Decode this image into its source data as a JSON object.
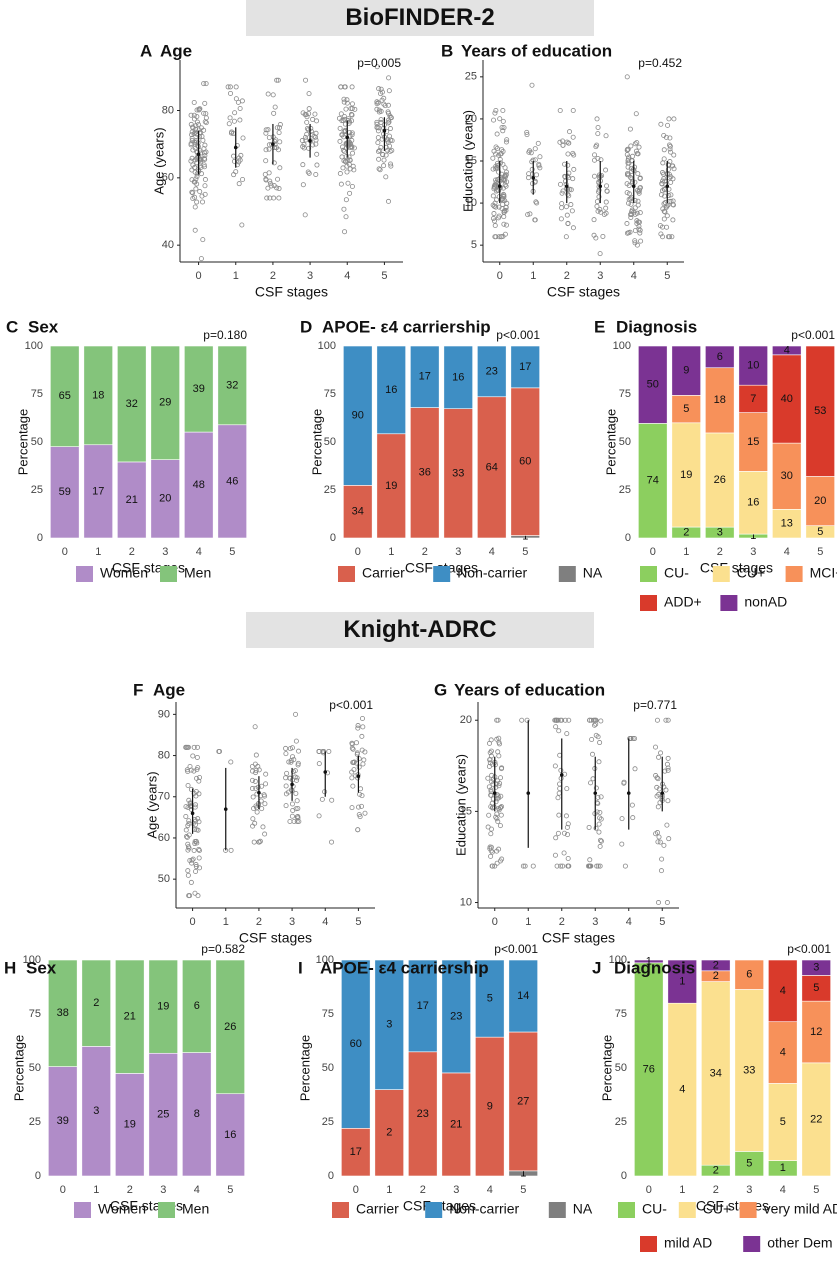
{
  "cohorts": {
    "biofinder": "BioFINDER-2",
    "knight": "Knight-ADRC"
  },
  "legends": {
    "sex": [
      "Women",
      "Men"
    ],
    "apoe": [
      "Carrier",
      "Non-carrier",
      "NA"
    ],
    "dx_bf": [
      "CU-",
      "CU+",
      "MCI+",
      "ADD+",
      "nonAD"
    ],
    "dx_kn": [
      "CU-",
      "CU+",
      "very mild AD",
      "mild AD",
      "other Dem"
    ]
  },
  "colors": {
    "women": "#b08cc8",
    "men": "#84c47b",
    "carrier": "#d9604d",
    "noncarrier": "#3e8ec4",
    "na": "#7f7f7f",
    "cu_minus": "#8ccf5f",
    "cu_plus": "#fbe08f",
    "mci": "#f7915a",
    "add": "#d93a2b",
    "nonad": "#7b3393"
  },
  "chart_data": [
    {
      "id": "A",
      "letter": "A",
      "type": "scatter",
      "title": "Age",
      "pvalue": "p=0.005",
      "xlabel": "CSF stages",
      "ylabel": "Age (years)",
      "categories": [
        "0",
        "1",
        "2",
        "3",
        "4",
        "5"
      ],
      "ylim": [
        35,
        95
      ],
      "yticks": [
        40,
        60,
        80
      ],
      "n": [
        110,
        30,
        45,
        40,
        85,
        70
      ],
      "median": [
        67,
        69,
        70,
        71,
        72,
        74
      ],
      "q1": [
        61,
        63,
        64,
        66,
        66,
        68
      ],
      "q3": [
        74,
        75,
        76,
        76,
        77,
        78
      ],
      "range": [
        [
          36,
          88
        ],
        [
          46,
          87
        ],
        [
          54,
          89
        ],
        [
          49,
          89
        ],
        [
          44,
          87
        ],
        [
          53,
          93
        ]
      ]
    },
    {
      "id": "B",
      "letter": "B",
      "type": "scatter",
      "title": "Years of education",
      "pvalue": "p=0.452",
      "xlabel": "CSF stages",
      "ylabel": "Education (years)",
      "categories": [
        "0",
        "1",
        "2",
        "3",
        "4",
        "5"
      ],
      "ylim": [
        3,
        27
      ],
      "yticks": [
        5,
        10,
        15,
        20,
        25
      ],
      "n": [
        110,
        30,
        45,
        40,
        85,
        70
      ],
      "median": [
        12,
        13,
        12,
        12,
        12,
        12
      ],
      "q1": [
        10,
        11,
        10,
        10,
        10,
        10
      ],
      "q3": [
        15,
        15,
        15,
        15,
        15,
        15
      ],
      "range": [
        [
          6,
          21
        ],
        [
          8,
          24
        ],
        [
          6,
          21
        ],
        [
          4,
          20
        ],
        [
          5,
          25
        ],
        [
          6,
          20
        ]
      ]
    },
    {
      "id": "C",
      "letter": "C",
      "type": "bar",
      "title": "Sex",
      "pvalue": "p=0.180",
      "xlabel": "CSF stages",
      "ylabel": "Percentage",
      "categories": [
        "0",
        "1",
        "2",
        "3",
        "4",
        "5"
      ],
      "yticks": [
        0,
        25,
        50,
        75,
        100
      ],
      "series": [
        {
          "key": "women",
          "values": [
            59,
            17,
            21,
            20,
            48,
            46
          ]
        },
        {
          "key": "men",
          "values": [
            65,
            18,
            32,
            29,
            39,
            32
          ]
        }
      ]
    },
    {
      "id": "D",
      "letter": "D",
      "type": "bar",
      "title": "APOE- ε4 carriership",
      "pvalue": "p<0.001",
      "xlabel": "CSF stages",
      "ylabel": "Percentage",
      "categories": [
        "0",
        "1",
        "2",
        "3",
        "4",
        "5"
      ],
      "yticks": [
        0,
        25,
        50,
        75,
        100
      ],
      "series": [
        {
          "key": "na",
          "values": [
            0,
            0,
            0,
            0,
            0,
            1
          ]
        },
        {
          "key": "carrier",
          "values": [
            34,
            19,
            36,
            33,
            64,
            60
          ]
        },
        {
          "key": "noncarrier",
          "values": [
            90,
            16,
            17,
            16,
            23,
            17
          ]
        }
      ]
    },
    {
      "id": "E",
      "letter": "E",
      "type": "bar",
      "title": "Diagnosis",
      "pvalue": "p<0.001",
      "xlabel": "CSF stages",
      "ylabel": "Percentage",
      "categories": [
        "0",
        "1",
        "2",
        "3",
        "4",
        "5"
      ],
      "yticks": [
        0,
        25,
        50,
        75,
        100
      ],
      "series": [
        {
          "key": "cu_minus",
          "values": [
            74,
            2,
            3,
            1,
            0,
            0
          ]
        },
        {
          "key": "cu_plus",
          "values": [
            0,
            19,
            26,
            16,
            13,
            5
          ]
        },
        {
          "key": "mci",
          "values": [
            0,
            5,
            18,
            15,
            30,
            20
          ]
        },
        {
          "key": "add",
          "values": [
            0,
            0,
            0,
            7,
            40,
            53
          ]
        },
        {
          "key": "nonad",
          "values": [
            50,
            9,
            6,
            10,
            4,
            0
          ]
        }
      ]
    },
    {
      "id": "F",
      "letter": "F",
      "type": "scatter",
      "title": "Age",
      "pvalue": "p<0.001",
      "xlabel": "CSF stages",
      "ylabel": "Age (years)",
      "categories": [
        "0",
        "1",
        "2",
        "3",
        "4",
        "5"
      ],
      "ylim": [
        43,
        93
      ],
      "yticks": [
        50,
        60,
        70,
        80,
        90
      ],
      "n": [
        80,
        5,
        40,
        45,
        14,
        40
      ],
      "median": [
        66,
        67,
        71,
        73,
        76,
        75
      ],
      "q1": [
        61,
        57,
        67,
        69,
        70,
        71
      ],
      "q3": [
        72,
        77,
        75,
        77,
        81,
        80
      ],
      "range": [
        [
          46,
          82
        ],
        [
          57,
          81
        ],
        [
          59,
          87
        ],
        [
          64,
          90
        ],
        [
          59,
          81
        ],
        [
          62,
          89
        ]
      ]
    },
    {
      "id": "G",
      "letter": "G",
      "type": "scatter",
      "title": "Years of education",
      "pvalue": "p=0.771",
      "xlabel": "CSF stages",
      "ylabel": "Education (years)",
      "categories": [
        "0",
        "1",
        "2",
        "3",
        "4",
        "5"
      ],
      "ylim": [
        9.7,
        21
      ],
      "yticks": [
        10,
        15,
        20
      ],
      "n": [
        80,
        5,
        40,
        45,
        14,
        40
      ],
      "median": [
        16,
        16,
        17,
        16,
        16,
        16
      ],
      "q1": [
        15,
        13,
        14,
        14,
        14,
        15
      ],
      "q3": [
        18,
        20,
        19,
        18,
        19,
        18
      ],
      "range": [
        [
          12,
          20
        ],
        [
          12,
          20
        ],
        [
          12,
          20
        ],
        [
          12,
          20
        ],
        [
          12,
          19
        ],
        [
          10,
          20
        ]
      ]
    },
    {
      "id": "H",
      "letter": "H",
      "type": "bar",
      "title": "Sex",
      "pvalue": "p=0.582",
      "xlabel": "CSF stages",
      "ylabel": "Percentage",
      "categories": [
        "0",
        "1",
        "2",
        "3",
        "4",
        "5"
      ],
      "yticks": [
        0,
        25,
        50,
        75,
        100
      ],
      "series": [
        {
          "key": "women",
          "values": [
            39,
            3,
            19,
            25,
            8,
            16
          ]
        },
        {
          "key": "men",
          "values": [
            38,
            2,
            21,
            19,
            6,
            26
          ]
        }
      ]
    },
    {
      "id": "I",
      "letter": "I",
      "type": "bar",
      "title": "APOE- ε4 carriership",
      "pvalue": "p<0.001",
      "xlabel": "CSF stages",
      "ylabel": "Percentage",
      "categories": [
        "0",
        "1",
        "2",
        "3",
        "4",
        "5"
      ],
      "yticks": [
        0,
        25,
        50,
        75,
        100
      ],
      "series": [
        {
          "key": "na",
          "values": [
            0,
            0,
            0,
            0,
            0,
            1
          ]
        },
        {
          "key": "carrier",
          "values": [
            17,
            2,
            23,
            21,
            9,
            27
          ]
        },
        {
          "key": "noncarrier",
          "values": [
            60,
            3,
            17,
            23,
            5,
            14
          ]
        }
      ]
    },
    {
      "id": "J",
      "letter": "J",
      "type": "bar",
      "title": "Diagnosis",
      "pvalue": "p<0.001",
      "xlabel": "CSF stages",
      "ylabel": "Percentage",
      "categories": [
        "0",
        "1",
        "2",
        "3",
        "4",
        "5"
      ],
      "yticks": [
        0,
        25,
        50,
        75,
        100
      ],
      "series": [
        {
          "key": "cu_minus",
          "values": [
            76,
            0,
            2,
            5,
            1,
            0
          ]
        },
        {
          "key": "cu_plus",
          "values": [
            0,
            4,
            34,
            33,
            5,
            22
          ]
        },
        {
          "key": "mci",
          "values": [
            0,
            0,
            2,
            6,
            4,
            12
          ]
        },
        {
          "key": "add",
          "values": [
            0,
            0,
            0,
            0,
            4,
            5
          ]
        },
        {
          "key": "nonad",
          "values": [
            1,
            1,
            2,
            0,
            0,
            3
          ]
        }
      ]
    }
  ]
}
